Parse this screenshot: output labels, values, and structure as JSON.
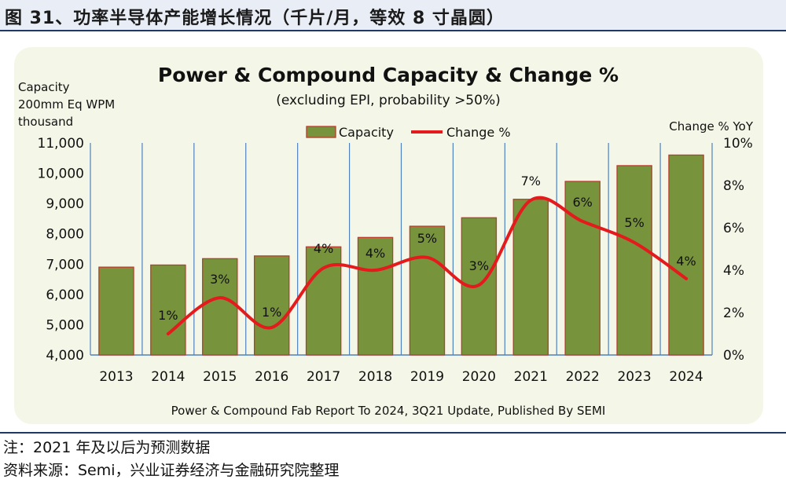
{
  "figure": {
    "caption": "图 31、功率半导体产能增长情况（千片/月，等效 8 寸晶圆）",
    "note": "注：2021 年及以后为预测数据",
    "source": "资料来源：Semi，兴业证券经济与金融研究院整理"
  },
  "chart_data": {
    "type": "bar",
    "title": "Power & Compound Capacity & Change %",
    "subtitle": "(excluding EPI, probability >50%)",
    "footer": "Power & Compound Fab Report To 2024, 3Q21 Update, Published By SEMI",
    "ylabel_lines": [
      "Capacity",
      "200mm Eq WPM",
      "thousand"
    ],
    "y2label": "Change % YoY",
    "categories": [
      "2013",
      "2014",
      "2015",
      "2016",
      "2017",
      "2018",
      "2019",
      "2020",
      "2021",
      "2022",
      "2023",
      "2024"
    ],
    "ylim": [
      4000,
      11000
    ],
    "yticks": [
      "4,000",
      "5,000",
      "6,000",
      "7,000",
      "8,000",
      "9,000",
      "10,000",
      "11,000"
    ],
    "y2lim": [
      0,
      10
    ],
    "y2ticks": [
      "0%",
      "2%",
      "4%",
      "6%",
      "8%",
      "10%"
    ],
    "legend_position": "top-center",
    "colors": {
      "bar": "#77933c",
      "bar_edge": "#c0392b",
      "line": "#e41a1c",
      "grid": "#4f81bd"
    },
    "series": [
      {
        "name": "Capacity",
        "type": "bar",
        "values": [
          6900,
          6970,
          7180,
          7270,
          7570,
          7880,
          8250,
          8530,
          9140,
          9730,
          10250,
          10600
        ]
      },
      {
        "name": "Change %",
        "type": "line",
        "axis": "right",
        "values": [
          null,
          1.0,
          2.7,
          1.3,
          4.1,
          4.0,
          4.6,
          3.3,
          7.3,
          6.3,
          5.3,
          3.6
        ]
      }
    ],
    "data_labels": [
      {
        "category": "2014",
        "text": "1%"
      },
      {
        "category": "2015",
        "text": "3%"
      },
      {
        "category": "2016",
        "text": "1%"
      },
      {
        "category": "2017",
        "text": "4%"
      },
      {
        "category": "2018",
        "text": "4%"
      },
      {
        "category": "2019",
        "text": "5%"
      },
      {
        "category": "2020",
        "text": "3%"
      },
      {
        "category": "2021",
        "text": "7%"
      },
      {
        "category": "2022",
        "text": "6%"
      },
      {
        "category": "2023",
        "text": "5%"
      },
      {
        "category": "2024",
        "text": "4%"
      }
    ]
  }
}
